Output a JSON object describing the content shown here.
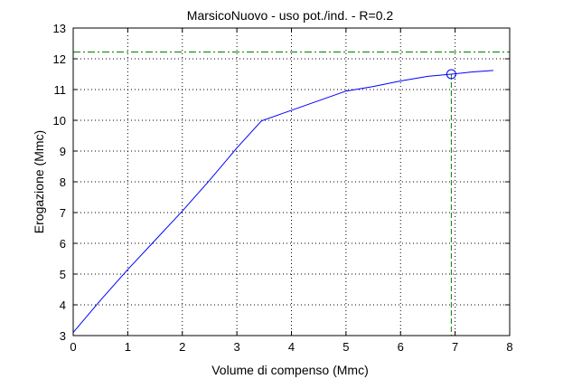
{
  "chart_data": {
    "type": "line",
    "title": "MarsicoNuovo  -  uso pot./ind.  -   R=0.2",
    "xlabel": "Volume di compenso (Mmc)",
    "ylabel": "Erogazione (Mmc)",
    "xlim": [
      0,
      8
    ],
    "ylim": [
      3,
      13
    ],
    "xticks": [
      0,
      1,
      2,
      3,
      4,
      5,
      6,
      7,
      8
    ],
    "yticks": [
      3,
      4,
      5,
      6,
      7,
      8,
      9,
      10,
      11,
      12,
      13
    ],
    "grid": true,
    "series": [
      {
        "color": "#0000ff",
        "x": [
          0,
          0.5,
          1,
          1.5,
          2,
          2.5,
          3,
          3.45,
          3.8,
          4.2,
          4.6,
          5.0,
          5.5,
          6.0,
          6.5,
          6.93,
          7.3,
          7.7
        ],
        "y": [
          3.1,
          4.15,
          5.15,
          6.1,
          7.05,
          8.05,
          9.1,
          9.98,
          10.2,
          10.45,
          10.7,
          10.95,
          11.1,
          11.28,
          11.43,
          11.5,
          11.57,
          11.62
        ]
      }
    ],
    "marker": {
      "x": 6.93,
      "y": 11.5,
      "color": "#0000ff"
    },
    "reference_lines": {
      "horizontal_y": 12.22,
      "vertical_x": 6.93,
      "color": "#008000"
    }
  }
}
